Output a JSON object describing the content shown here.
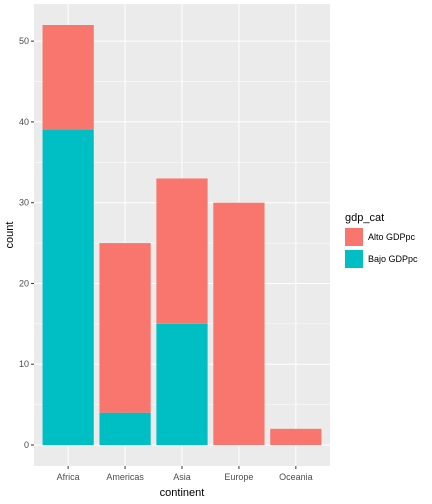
{
  "chart_data": {
    "type": "bar",
    "stacked": true,
    "categories": [
      "Africa",
      "Americas",
      "Asia",
      "Europe",
      "Oceania"
    ],
    "series": [
      {
        "name": "Alto GDPpc",
        "values": [
          13,
          21,
          18,
          30,
          2
        ],
        "color": "#F8766D"
      },
      {
        "name": "Bajo GDPpc",
        "values": [
          39,
          4,
          15,
          0,
          0
        ],
        "color": "#00BFC4"
      }
    ],
    "xlabel": "continent",
    "ylabel": "count",
    "ylim": [
      -2.6,
      54.6
    ],
    "yticks": [
      0,
      10,
      20,
      30,
      40,
      50
    ],
    "grid": true,
    "panel_background": "#EBEBEB",
    "legend": {
      "title": "gdp_cat",
      "position": "right"
    }
  }
}
